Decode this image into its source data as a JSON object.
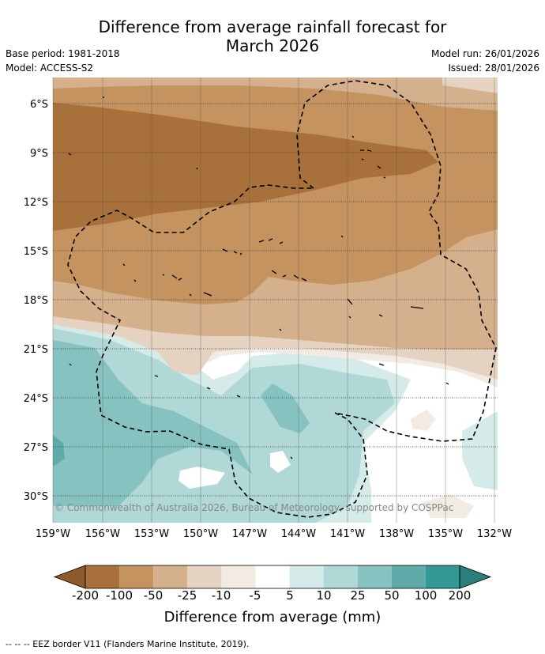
{
  "header": {
    "title_line1": "Difference from average rainfall forecast for",
    "title_line2": "March 2026",
    "base_period": "Base period: 1981-2018",
    "model": "Model: ACCESS-S2",
    "model_run": "Model run: 26/01/2026",
    "issued": "Issued: 28/01/2026"
  },
  "map": {
    "lat_labels": [
      "6°S",
      "9°S",
      "12°S",
      "15°S",
      "18°S",
      "21°S",
      "24°S",
      "27°S",
      "30°S"
    ],
    "lon_labels": [
      "159°W",
      "156°W",
      "153°W",
      "150°W",
      "147°W",
      "144°W",
      "141°W",
      "138°W",
      "135°W",
      "132°W"
    ],
    "copyright": "© Commonwealth of Australia 2026, Bureau of Meteorology, supported by COSPPac"
  },
  "colorbar": {
    "ticks": [
      "-200",
      "-100",
      "-50",
      "-25",
      "-10",
      "-5",
      "5",
      "10",
      "25",
      "50",
      "100",
      "200"
    ],
    "colors": [
      "#8c5a2b",
      "#a8703a",
      "#c4935f",
      "#d5b08c",
      "#e6d2c0",
      "#f2ebe4",
      "#ffffff",
      "#d5ebe9",
      "#afd8d6",
      "#86c3c0",
      "#5eabaa",
      "#339895",
      "#2a7f7c"
    ],
    "label": "Difference from average (mm)"
  },
  "footnote": "--  --  -- EEZ border V11 (Flanders Marine Institute, 2019)."
}
